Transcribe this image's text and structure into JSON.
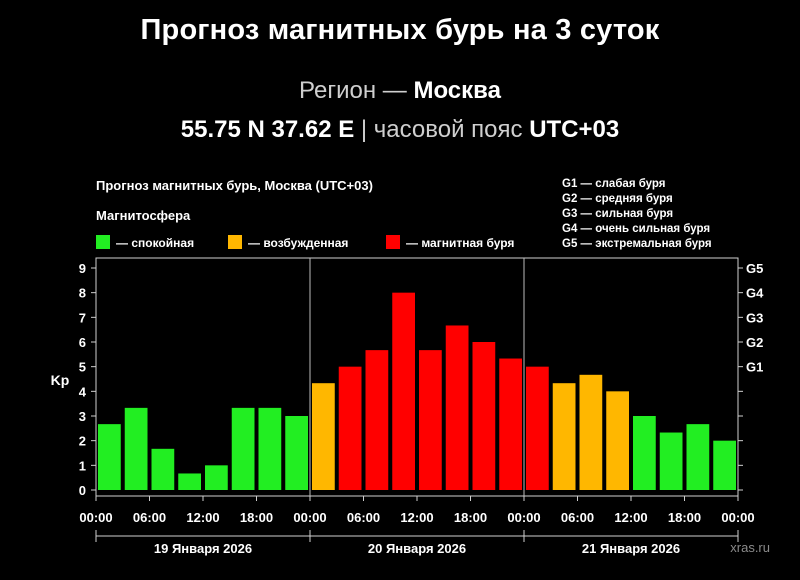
{
  "header": {
    "title": "Прогноз магнитных бурь на 3 суток",
    "region_label": "Регион —",
    "region_name": "Москва",
    "coords": "55.75 N 37.62 E",
    "separator": "|",
    "timezone_label": "часовой пояс",
    "timezone": "UTC+03"
  },
  "brand": "xras.ru",
  "chart_data": {
    "type": "bar",
    "title": "Прогноз магнитных бурь, Москва (UTC+03)",
    "ylabel": "Kp",
    "ylim": [
      0,
      9
    ],
    "y_ticks": [
      "0",
      "1",
      "2",
      "3",
      "4",
      "5",
      "6",
      "7",
      "8",
      "9"
    ],
    "x_tick_labels": [
      "00:00",
      "06:00",
      "12:00",
      "18:00",
      "00:00",
      "06:00",
      "12:00",
      "18:00",
      "00:00",
      "06:00",
      "12:00",
      "18:00",
      "00:00"
    ],
    "day_labels": [
      "19 Января 2026",
      "20 Января 2026",
      "21 Января 2026"
    ],
    "legend_title": "Магнитосфера",
    "legend": [
      {
        "label": "— спокойная",
        "color": "#22ee22"
      },
      {
        "label": "— возбужденная",
        "color": "#ffb700"
      },
      {
        "label": "— магнитная буря",
        "color": "#ff0000"
      }
    ],
    "g_legend": [
      "G1 — слабая буря",
      "G2 — средняя буря",
      "G3 — сильная буря",
      "G4 — очень сильная буря",
      "G5 — экстремальная буря"
    ],
    "g_axis": [
      {
        "label": "G1",
        "kp": 5
      },
      {
        "label": "G2",
        "kp": 6
      },
      {
        "label": "G3",
        "kp": 7
      },
      {
        "label": "G4",
        "kp": 8
      },
      {
        "label": "G5",
        "kp": 9
      }
    ],
    "colors": {
      "quiet": "#22ee22",
      "active": "#ffb700",
      "storm": "#ff0000"
    },
    "values": [
      2.67,
      3.33,
      1.67,
      0.67,
      1.0,
      3.33,
      3.33,
      3.0,
      4.33,
      5.0,
      5.67,
      8.0,
      5.67,
      6.67,
      6.0,
      5.33,
      5.0,
      4.33,
      4.67,
      4.0,
      3.0,
      2.33,
      2.67,
      2.0
    ],
    "categories": [
      "active",
      "active",
      "active",
      "active",
      "active",
      "active",
      "active",
      "active",
      "active",
      "active",
      "active",
      "active",
      "active",
      "active",
      "active",
      "active",
      "active",
      "active",
      "active",
      "active",
      "active",
      "active",
      "active",
      "active"
    ],
    "bar_levels": [
      "quiet",
      "quiet",
      "quiet",
      "quiet",
      "quiet",
      "quiet",
      "quiet",
      "quiet",
      "active",
      "storm",
      "storm",
      "storm",
      "storm",
      "storm",
      "storm",
      "storm",
      "storm",
      "active",
      "active",
      "active",
      "quiet",
      "quiet",
      "quiet",
      "quiet"
    ],
    "grid": false
  }
}
